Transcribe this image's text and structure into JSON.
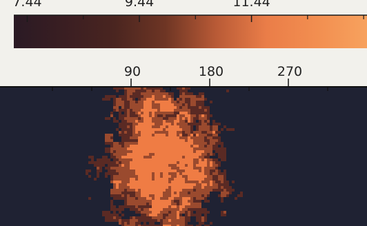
{
  "chart_data": [
    {
      "type": "colorbar",
      "ticks": [
        7.44,
        9.44,
        11.44
      ],
      "tick_labels": [
        "7.44",
        "9.44",
        "11.44"
      ],
      "range": [
        7.2,
        13.5
      ],
      "colormap": [
        "#2a1a24",
        "#3a1e22",
        "#4a2520",
        "#6e3524",
        "#b85a36",
        "#ea7d48",
        "#f28e50",
        "#f7a25e"
      ]
    },
    {
      "type": "heatmap",
      "x_ticks": [
        90,
        180,
        270
      ],
      "x_tick_labels": [
        "90",
        "180",
        "270"
      ],
      "xlim": [
        -60,
        360
      ],
      "colors": {
        "background": "#1f2233",
        "low": "#5a2a24",
        "mid": "#9a4a2e",
        "high": "#ef7c44"
      },
      "hot_region_center_x": 125
    }
  ]
}
